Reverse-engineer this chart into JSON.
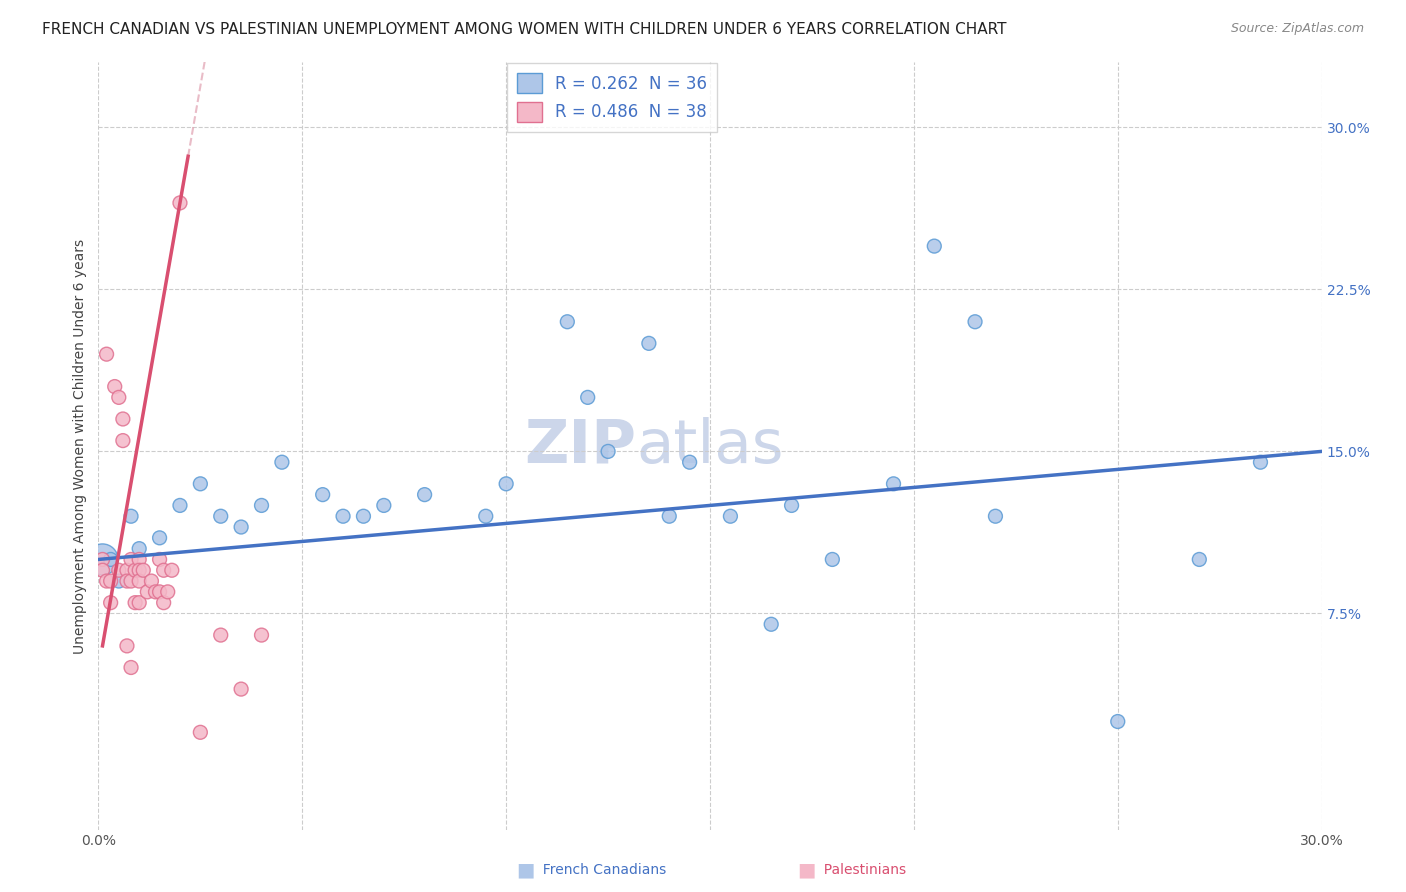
{
  "title": "FRENCH CANADIAN VS PALESTINIAN UNEMPLOYMENT AMONG WOMEN WITH CHILDREN UNDER 6 YEARS CORRELATION CHART",
  "source": "Source: ZipAtlas.com",
  "ylabel": "Unemployment Among Women with Children Under 6 years",
  "xlim": [
    0.0,
    0.3
  ],
  "ylim": [
    -0.025,
    0.33
  ],
  "legend_r1": "R = 0.262  N = 36",
  "legend_r2": "R = 0.486  N = 38",
  "watermark_line1": "ZIP",
  "watermark_line2": "atlas",
  "blue_scatter_x": [
    0.001,
    0.003,
    0.005,
    0.008,
    0.01,
    0.015,
    0.02,
    0.025,
    0.03,
    0.035,
    0.04,
    0.045,
    0.055,
    0.06,
    0.065,
    0.07,
    0.08,
    0.095,
    0.1,
    0.115,
    0.12,
    0.125,
    0.135,
    0.14,
    0.145,
    0.155,
    0.165,
    0.17,
    0.18,
    0.195,
    0.205,
    0.215,
    0.22,
    0.25,
    0.27,
    0.285
  ],
  "blue_scatter_y": [
    0.1,
    0.1,
    0.09,
    0.12,
    0.105,
    0.11,
    0.125,
    0.135,
    0.12,
    0.115,
    0.125,
    0.145,
    0.13,
    0.12,
    0.12,
    0.125,
    0.13,
    0.12,
    0.135,
    0.21,
    0.175,
    0.15,
    0.2,
    0.12,
    0.145,
    0.12,
    0.07,
    0.125,
    0.1,
    0.135,
    0.245,
    0.21,
    0.12,
    0.025,
    0.1,
    0.145
  ],
  "blue_sizes": [
    100,
    100,
    100,
    100,
    100,
    100,
    100,
    100,
    100,
    100,
    100,
    100,
    100,
    100,
    100,
    100,
    100,
    100,
    100,
    100,
    100,
    100,
    100,
    100,
    100,
    100,
    100,
    100,
    100,
    100,
    100,
    100,
    100,
    100,
    100,
    100
  ],
  "blue_large_idx": 0,
  "pink_scatter_x": [
    0.001,
    0.001,
    0.002,
    0.002,
    0.003,
    0.003,
    0.004,
    0.005,
    0.005,
    0.006,
    0.006,
    0.007,
    0.007,
    0.007,
    0.008,
    0.008,
    0.008,
    0.009,
    0.009,
    0.01,
    0.01,
    0.01,
    0.01,
    0.011,
    0.012,
    0.013,
    0.014,
    0.015,
    0.015,
    0.016,
    0.016,
    0.017,
    0.018,
    0.02,
    0.025,
    0.03,
    0.035,
    0.04
  ],
  "pink_scatter_y": [
    0.1,
    0.095,
    0.195,
    0.09,
    0.09,
    0.08,
    0.18,
    0.175,
    0.095,
    0.155,
    0.165,
    0.095,
    0.09,
    0.06,
    0.1,
    0.09,
    0.05,
    0.095,
    0.08,
    0.1,
    0.095,
    0.09,
    0.08,
    0.095,
    0.085,
    0.09,
    0.085,
    0.1,
    0.085,
    0.095,
    0.08,
    0.085,
    0.095,
    0.265,
    0.02,
    0.065,
    0.04,
    0.065
  ],
  "pink_sizes": [
    100,
    100,
    100,
    100,
    100,
    100,
    100,
    100,
    100,
    100,
    100,
    100,
    100,
    100,
    100,
    100,
    100,
    100,
    100,
    100,
    100,
    100,
    100,
    100,
    100,
    100,
    100,
    100,
    100,
    100,
    100,
    100,
    100,
    100,
    100,
    100,
    100,
    100
  ],
  "blue_face_color": "#aec6e8",
  "blue_edge_color": "#5b9bd5",
  "pink_face_color": "#f4b8c8",
  "pink_edge_color": "#e07090",
  "blue_line_color": "#4472c4",
  "pink_line_color": "#d94f70",
  "pink_dash_color": "#e0a0b0",
  "grid_color": "#cccccc",
  "background_color": "#ffffff",
  "title_fontsize": 11,
  "source_fontsize": 9,
  "watermark_fontsize": 44,
  "watermark_color": "#ccd6ea",
  "ylabel_fontsize": 10,
  "tick_fontsize": 10,
  "legend_fontsize": 12,
  "bottom_label_blue": "French Canadians",
  "bottom_label_pink": "Palestinians"
}
